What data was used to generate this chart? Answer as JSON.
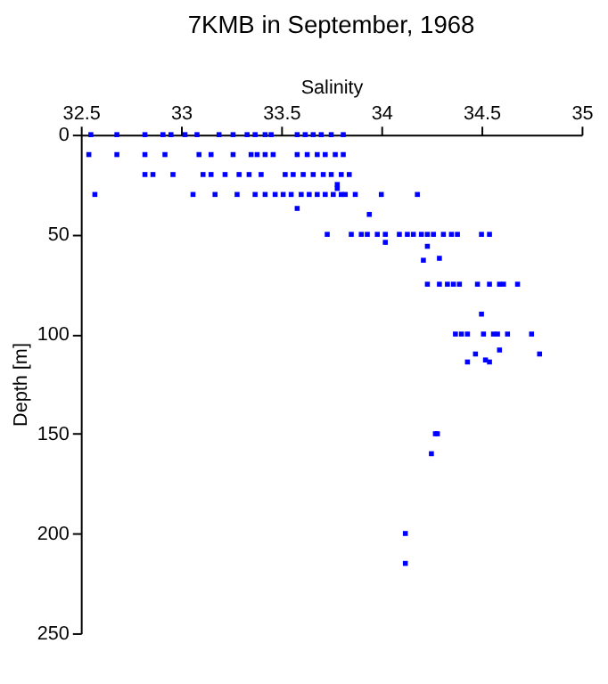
{
  "chart_data": {
    "type": "scatter",
    "title": "7KMB in September, 1968",
    "xlabel": "Salinity",
    "ylabel": "Depth [m]",
    "xlim": [
      32.5,
      35
    ],
    "xticks": [
      32.5,
      33,
      33.5,
      34,
      34.5,
      35
    ],
    "ylim": [
      250,
      0
    ],
    "yticks": [
      0,
      50,
      100,
      150,
      200,
      250
    ],
    "grid": false,
    "marker": "square",
    "series": [
      {
        "color": "#0000ff",
        "x": [
          32.55,
          32.68,
          32.82,
          32.91,
          32.95,
          33.02,
          33.08,
          33.19,
          33.26,
          33.33,
          33.37,
          33.42,
          33.45,
          33.58,
          33.62,
          33.66,
          33.7,
          33.75,
          33.81,
          32.54,
          32.68,
          32.82,
          32.92,
          33.09,
          33.15,
          33.26,
          33.35,
          33.38,
          33.42,
          33.46,
          33.58,
          33.63,
          33.68,
          33.72,
          33.77,
          33.81,
          32.82,
          32.86,
          32.96,
          33.11,
          33.15,
          33.22,
          33.29,
          33.34,
          33.4,
          33.52,
          33.56,
          33.61,
          33.66,
          33.71,
          33.75,
          33.8,
          33.84,
          32.57,
          33.06,
          33.17,
          33.28,
          33.37,
          33.42,
          33.47,
          33.51,
          33.55,
          33.6,
          33.64,
          33.68,
          33.72,
          33.76,
          33.8,
          33.82,
          33.87,
          34.0,
          34.18,
          33.78,
          33.78,
          33.58,
          33.94,
          33.73,
          33.85,
          33.9,
          33.93,
          33.98,
          34.02,
          34.09,
          34.13,
          34.16,
          34.2,
          34.23,
          34.26,
          34.31,
          34.35,
          34.38,
          34.5,
          34.54,
          34.02,
          34.23,
          34.21,
          34.29,
          34.23,
          34.29,
          34.33,
          34.36,
          34.39,
          34.48,
          34.54,
          34.59,
          34.61,
          34.68,
          34.5,
          34.37,
          34.4,
          34.43,
          34.51,
          34.56,
          34.58,
          34.63,
          34.75,
          34.59,
          34.79,
          34.47,
          34.43,
          34.52,
          34.54,
          34.28,
          34.27,
          34.25,
          34.12,
          34.12
        ],
        "values": [
          0,
          0,
          0,
          0,
          0,
          0,
          0,
          0,
          0,
          0,
          0,
          0,
          0,
          0,
          0,
          0,
          0,
          0,
          0,
          10,
          10,
          10,
          10,
          10,
          10,
          10,
          10,
          10,
          10,
          10,
          10,
          10,
          10,
          10,
          10,
          10,
          20,
          20,
          20,
          20,
          20,
          20,
          20,
          20,
          20,
          20,
          20,
          20,
          20,
          20,
          20,
          20,
          20,
          30,
          30,
          30,
          30,
          30,
          30,
          30,
          30,
          30,
          30,
          30,
          30,
          30,
          30,
          30,
          30,
          30,
          30,
          30,
          25,
          27,
          37,
          40,
          50,
          50,
          50,
          50,
          50,
          50,
          50,
          50,
          50,
          50,
          50,
          50,
          50,
          50,
          50,
          50,
          50,
          54,
          56,
          63,
          62,
          75,
          75,
          75,
          75,
          75,
          75,
          75,
          75,
          75,
          75,
          90,
          100,
          100,
          100,
          100,
          100,
          100,
          100,
          100,
          108,
          110,
          110,
          114,
          113,
          114,
          150,
          150,
          160,
          200,
          215
        ]
      }
    ]
  }
}
